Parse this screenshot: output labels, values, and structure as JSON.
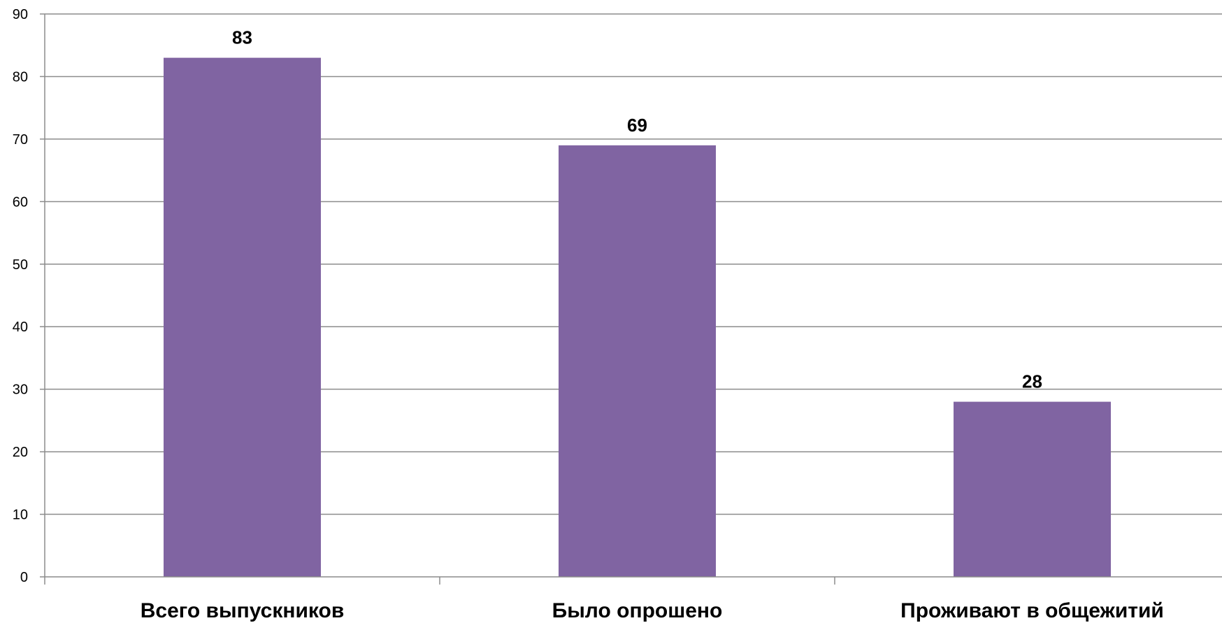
{
  "chart_data": {
    "type": "bar",
    "title": "",
    "xlabel": "",
    "ylabel": "",
    "categories": [
      "Всего выпускников",
      "Было опрошено",
      "Проживают в общежитий"
    ],
    "values": [
      83,
      69,
      28
    ],
    "data_labels": [
      "83",
      "69",
      "28"
    ],
    "ylim": [
      0,
      90
    ],
    "y_ticks": [
      0,
      10,
      20,
      30,
      40,
      50,
      60,
      70,
      80,
      90
    ],
    "y_tick_labels": [
      "0",
      "10",
      "20",
      "30",
      "40",
      "50",
      "60",
      "70",
      "80",
      "90"
    ],
    "grid": true,
    "legend": "none",
    "bar_color": "#8064a2",
    "grid_color": "#8c8c8c"
  }
}
